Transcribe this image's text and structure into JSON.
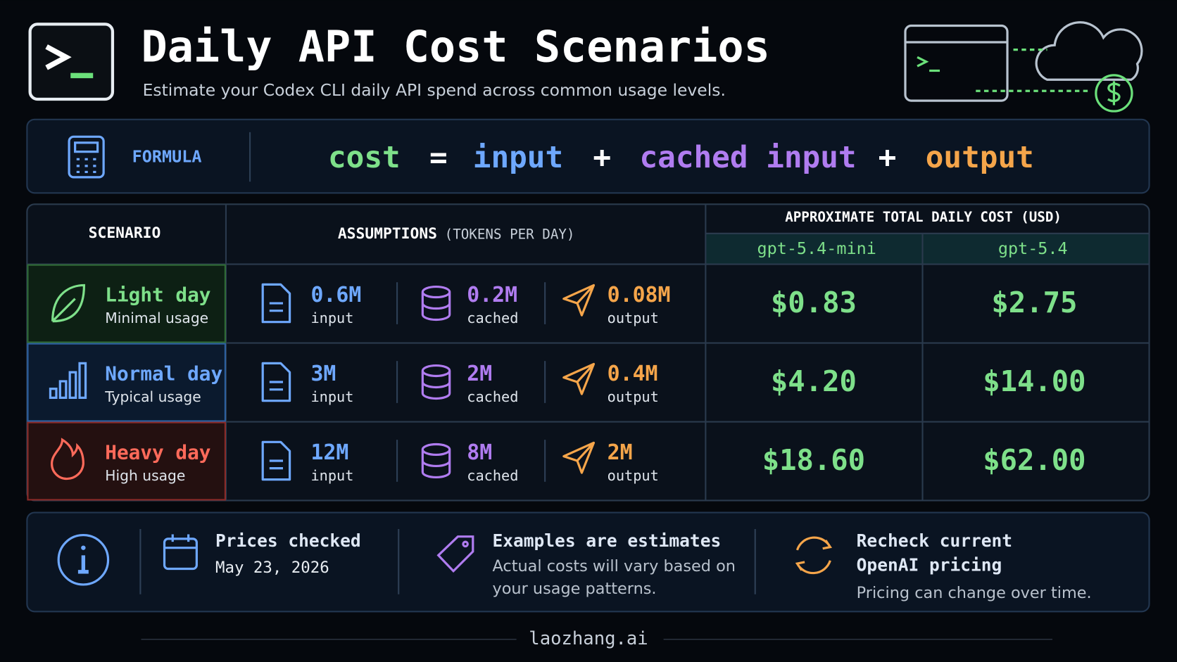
{
  "header": {
    "title": "Daily API Cost Scenarios",
    "subtitle": "Estimate your Codex CLI daily API spend across common usage levels."
  },
  "formula": {
    "label": "FORMULA",
    "terms": [
      "cost",
      "=",
      "input",
      "+",
      "cached input",
      "+",
      "output"
    ]
  },
  "table": {
    "headers": {
      "scenario": "SCENARIO",
      "assumptions": "ASSUMPTIONS",
      "assumptions_note": "(TOKENS PER DAY)",
      "cost": "APPROXIMATE TOTAL DAILY COST (USD)",
      "models": [
        "gpt-5.4-mini",
        "gpt-5.4"
      ]
    },
    "rows": [
      {
        "name": "Light day",
        "desc": "Minimal usage",
        "input": {
          "value": "0.6M",
          "label": "input"
        },
        "cached": {
          "value": "0.2M",
          "label": "cached"
        },
        "output": {
          "value": "0.08M",
          "label": "output"
        },
        "costs": [
          "$0.83",
          "$2.75"
        ]
      },
      {
        "name": "Normal day",
        "desc": "Typical usage",
        "input": {
          "value": "3M",
          "label": "input"
        },
        "cached": {
          "value": "2M",
          "label": "cached"
        },
        "output": {
          "value": "0.4M",
          "label": "output"
        },
        "costs": [
          "$4.20",
          "$14.00"
        ]
      },
      {
        "name": "Heavy day",
        "desc": "High usage",
        "input": {
          "value": "12M",
          "label": "input"
        },
        "cached": {
          "value": "8M",
          "label": "cached"
        },
        "output": {
          "value": "2M",
          "label": "output"
        },
        "costs": [
          "$18.60",
          "$62.00"
        ]
      }
    ]
  },
  "notes": [
    {
      "title": [
        "Prices checked"
      ],
      "body": [
        "May 23, 2026"
      ]
    },
    {
      "title": [
        "Examples are estimates"
      ],
      "body": [
        "Actual costs will vary based on",
        "your usage patterns."
      ]
    },
    {
      "title": [
        "Recheck current",
        "OpenAI pricing"
      ],
      "body": [
        "Pricing can change over time."
      ]
    }
  ],
  "footer": "laozhang.ai"
}
